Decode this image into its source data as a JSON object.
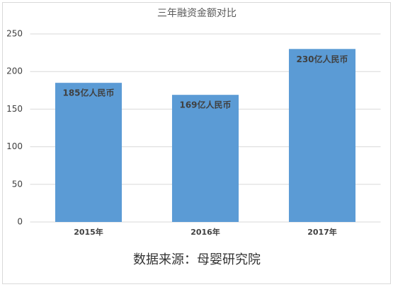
{
  "chart_data": {
    "type": "bar",
    "title": "三年融资金额对比",
    "categories": [
      "2015年",
      "2016年",
      "2017年"
    ],
    "values": [
      185,
      169,
      230
    ],
    "value_labels": [
      "185亿人民币",
      "169亿人民币",
      "230亿人民币"
    ],
    "color": "#5b9bd5",
    "ylim": [
      0,
      250
    ],
    "yticks": [
      0,
      50,
      100,
      150,
      200,
      250
    ],
    "grid": true,
    "source": "数据来源：母婴研究院"
  }
}
